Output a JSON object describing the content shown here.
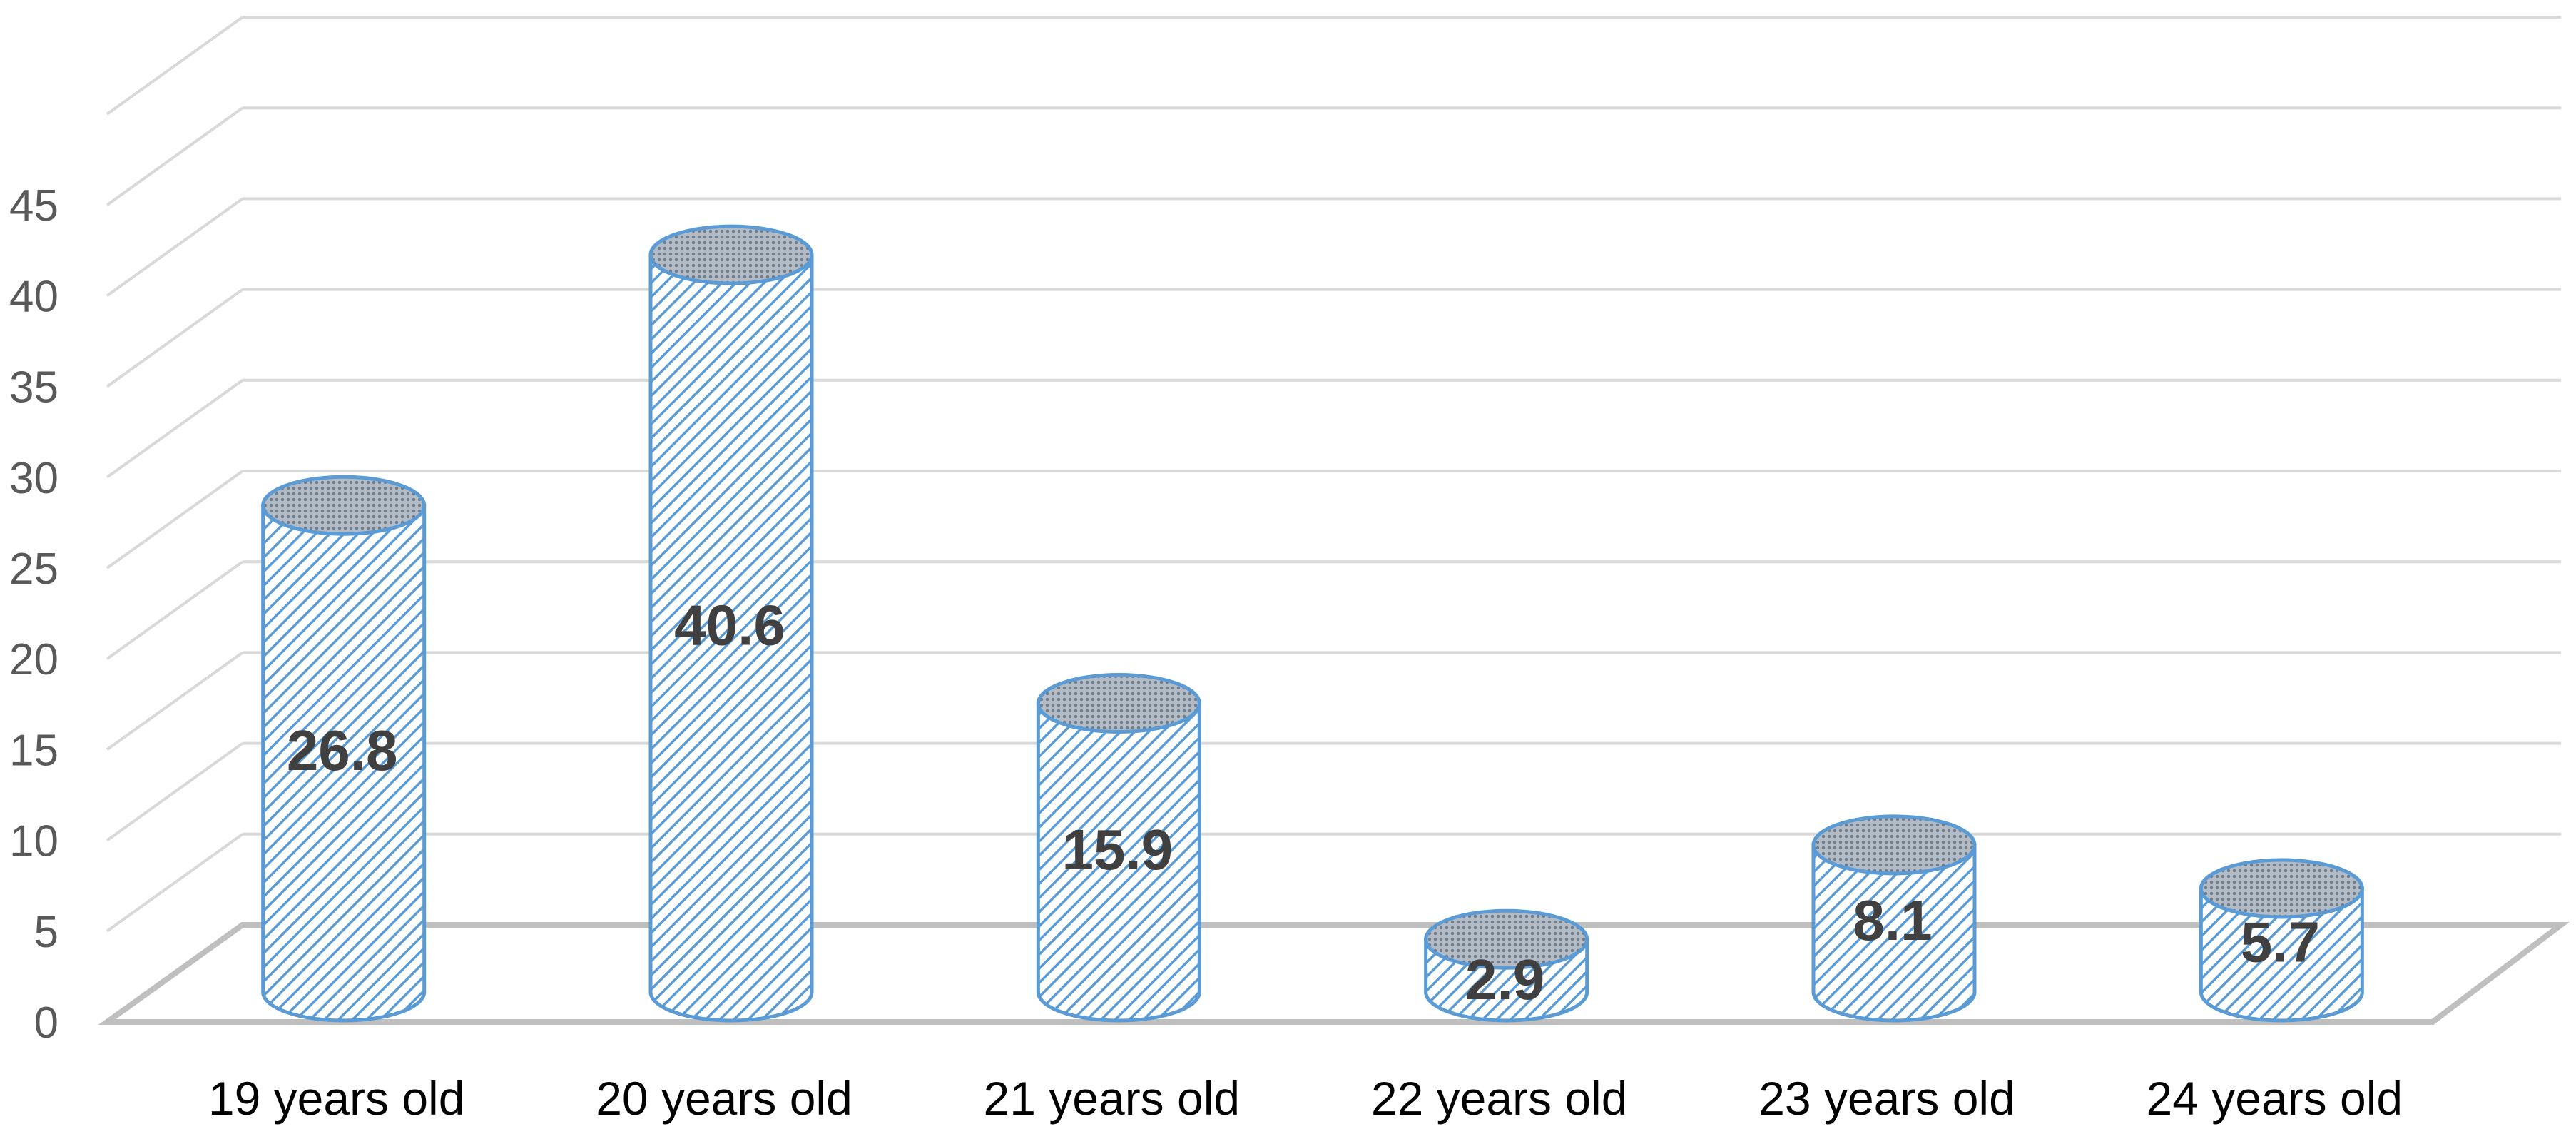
{
  "chart_data": {
    "type": "bar",
    "style": "3d-cylinder",
    "title": "",
    "xlabel": "",
    "ylabel": "",
    "ylim": [
      0,
      50
    ],
    "yticks": [
      0,
      5,
      10,
      15,
      20,
      25,
      30,
      35,
      40,
      45
    ],
    "grid": true,
    "legend": "none",
    "categories": [
      "19 years old",
      "20 years old",
      "21 years old",
      "22 years old",
      "23 years old",
      "24 years old"
    ],
    "values": [
      26.8,
      40.6,
      15.9,
      2.9,
      8.1,
      5.7
    ],
    "value_labels": [
      "26.8",
      "40.6",
      "15.9",
      "2.9",
      "8.1",
      "5.7"
    ],
    "colors": {
      "bar_outline": "#5b9bd5",
      "bar_hatch": "#5b9bd5",
      "bar_fill": "#ffffff",
      "top_fill": "#9aa4ae",
      "grid": "#d9d9d9",
      "floor": "#bfbfbf",
      "tick_text": "#595959",
      "category_text": "#000000",
      "data_label_text": "#404040"
    }
  }
}
